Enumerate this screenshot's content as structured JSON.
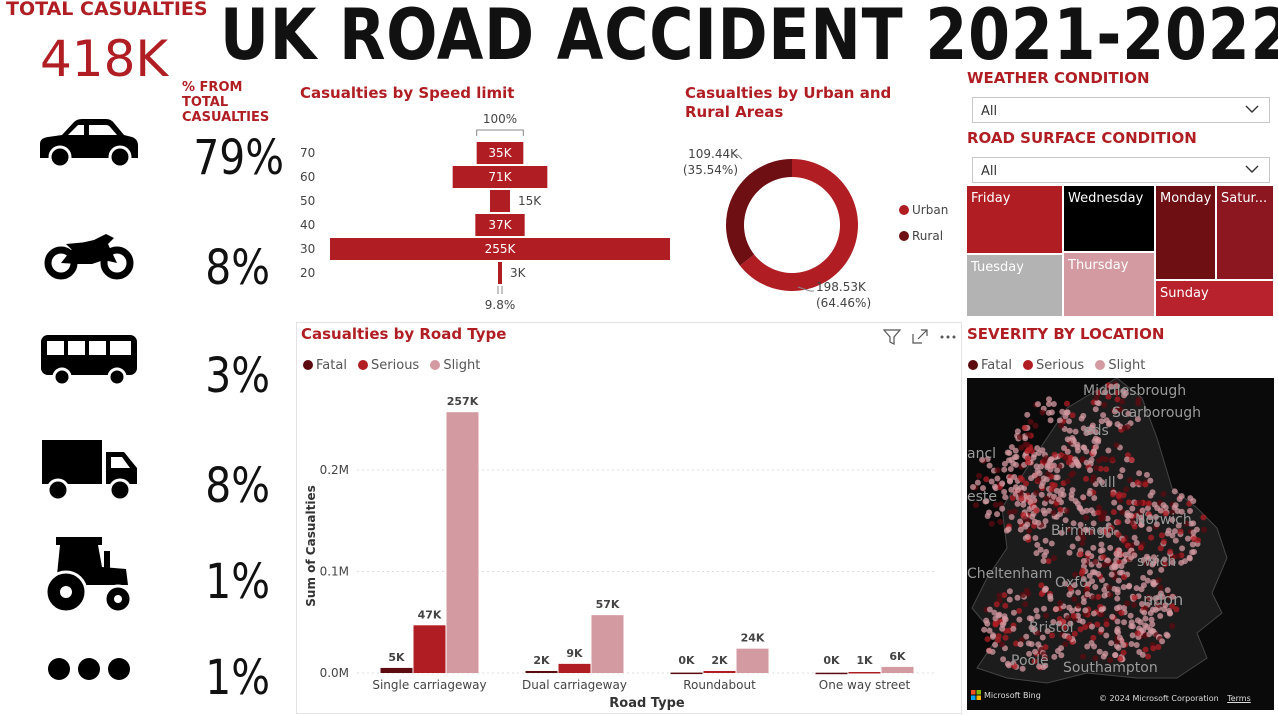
{
  "header": {
    "total_title": "TOTAL CASUALTIES",
    "total_value": "418K",
    "main_title": "UK ROAD ACCIDENT 2021-2022",
    "pct_header": "% FROM TOTAL CASUALTIES"
  },
  "vehicles": [
    {
      "icon": "car-icon",
      "pct": "79%"
    },
    {
      "icon": "motorcycle-icon",
      "pct": "8%"
    },
    {
      "icon": "bus-icon",
      "pct": "3%"
    },
    {
      "icon": "truck-icon",
      "pct": "8%"
    },
    {
      "icon": "tractor-icon",
      "pct": "1%"
    },
    {
      "icon": "more-icon",
      "pct": "1%"
    }
  ],
  "filters": {
    "weather_title": "WEATHER CONDITION",
    "weather_value": "All",
    "road_surface_title": "ROAD SURFACE CONDITION",
    "road_surface_value": "All"
  },
  "treemap": [
    {
      "label": "Friday",
      "color": "#b01e24"
    },
    {
      "label": "Wednesday",
      "color": "#000000"
    },
    {
      "label": "Monday",
      "color": "#6e0f14"
    },
    {
      "label": "Satur...",
      "color": "#8c1720"
    },
    {
      "label": "Tuesday",
      "color": "#b3b3b3"
    },
    {
      "label": "Thursday",
      "color": "#d49aa2"
    },
    {
      "label": "Sunday",
      "color": "#b8222c"
    }
  ],
  "severity_map": {
    "title": "SEVERITY BY LOCATION",
    "legend": [
      "Fatal",
      "Serious",
      "Slight"
    ],
    "places": [
      "Middlesbrough",
      "Scarborough",
      "eds",
      "ancl",
      "ull",
      "este",
      "Norwich",
      "Birmingh",
      "swich",
      "Cheltenham",
      "Oxfo",
      "ndon",
      "Bristol",
      "Poole",
      "Southampton"
    ],
    "bing_label": "Microsoft Bing",
    "copyright": "© 2024 Microsoft Corporation",
    "terms": "Terms"
  },
  "colors": {
    "fatal": "#5c0b10",
    "serious": "#b01e24",
    "slight": "#d49aa2",
    "accent": "#b01e24"
  },
  "chart_data": [
    {
      "type": "bar",
      "title": "Casualties by Speed limit",
      "orientation": "horizontal-funnel",
      "categories": [
        "70",
        "60",
        "50",
        "40",
        "30",
        "20"
      ],
      "values": [
        35,
        71,
        15,
        37,
        255,
        3
      ],
      "labels": [
        "35K",
        "71K",
        "15K",
        "37K",
        "255K",
        "3K"
      ],
      "top_annotation": "100%",
      "bottom_annotation": "9.8%"
    },
    {
      "type": "pie",
      "title": "Casualties by Urban and Rural Areas",
      "donut": true,
      "series": [
        {
          "name": "Urban",
          "value": 198.53,
          "label": "198.53K",
          "pct_label": "(64.46%)",
          "color": "#b01e24"
        },
        {
          "name": "Rural",
          "value": 109.44,
          "label": "109.44K",
          "pct_label": "(35.54%)",
          "color": "#6e0f14"
        }
      ],
      "legend": "right"
    },
    {
      "type": "bar",
      "title": "Casualties by Road Type",
      "categories": [
        "Single carriageway",
        "Dual carriageway",
        "Roundabout",
        "One way street"
      ],
      "series": [
        {
          "name": "Fatal",
          "values": [
            5,
            2,
            0.4,
            0.3
          ],
          "labels": [
            "5K",
            "2K",
            "0K",
            "0K"
          ],
          "color": "#5c0b10"
        },
        {
          "name": "Serious",
          "values": [
            47,
            9,
            2,
            1
          ],
          "labels": [
            "47K",
            "9K",
            "2K",
            "1K"
          ],
          "color": "#b01e24"
        },
        {
          "name": "Slight",
          "values": [
            257,
            57,
            24,
            6
          ],
          "labels": [
            "257K",
            "57K",
            "24K",
            "6K"
          ],
          "color": "#d49aa2"
        }
      ],
      "xlabel": "Road Type",
      "ylabel": "Sum of Casualties",
      "yticks": [
        "0.0M",
        "0.1M",
        "0.2M"
      ],
      "ytick_values": [
        0,
        100,
        200
      ],
      "ylim": [
        0,
        270
      ],
      "legend": "top-left",
      "grid": true
    }
  ]
}
